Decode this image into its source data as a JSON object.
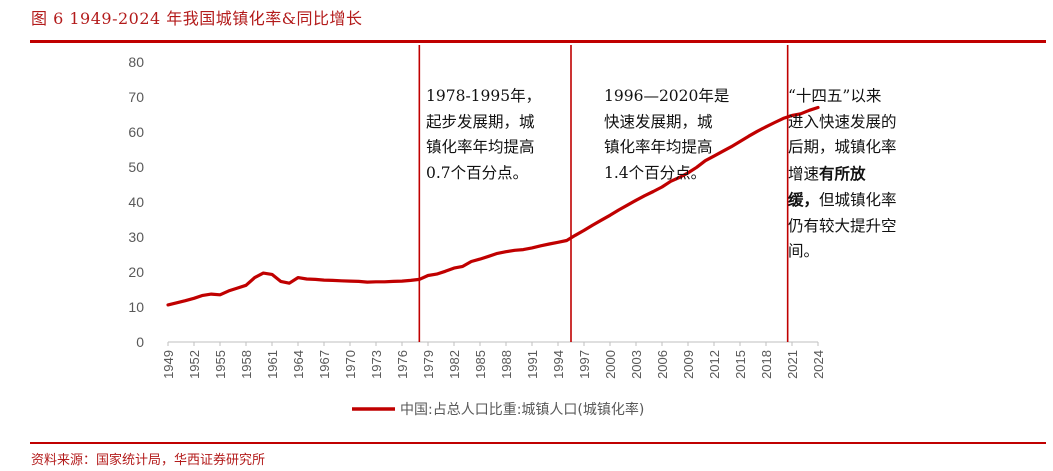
{
  "figure_title": "图 6   1949-2024 年我国城镇化率&同比增长",
  "source_note": "资料来源：国家统计局，华西证券研究所",
  "colors": {
    "accent": "#c00000",
    "line": "#c00000"
  },
  "chart_data": {
    "type": "line",
    "title": "",
    "xlabel": "",
    "ylabel": "",
    "ylim": [
      0,
      80
    ],
    "yticks": [
      0,
      10,
      20,
      30,
      40,
      50,
      60,
      70,
      80
    ],
    "x_tick_labels": [
      "1949",
      "1952",
      "1955",
      "1958",
      "1961",
      "1964",
      "1967",
      "1970",
      "1973",
      "1976",
      "1979",
      "1982",
      "1985",
      "1988",
      "1991",
      "1994",
      "1997",
      "2000",
      "2003",
      "2006",
      "2009",
      "2012",
      "2015",
      "2018",
      "2021",
      "2024"
    ],
    "grid": false,
    "legend_position": "bottom",
    "series": [
      {
        "name": "中国:占总人口比重:城镇人口(城镇化率)",
        "x": [
          1949,
          1950,
          1951,
          1952,
          1953,
          1954,
          1955,
          1956,
          1957,
          1958,
          1959,
          1960,
          1961,
          1962,
          1963,
          1964,
          1965,
          1966,
          1967,
          1968,
          1969,
          1970,
          1971,
          1972,
          1973,
          1974,
          1975,
          1976,
          1977,
          1978,
          1979,
          1980,
          1981,
          1982,
          1983,
          1984,
          1985,
          1986,
          1987,
          1988,
          1989,
          1990,
          1991,
          1992,
          1993,
          1994,
          1995,
          1996,
          1997,
          1998,
          1999,
          2000,
          2001,
          2002,
          2003,
          2004,
          2005,
          2006,
          2007,
          2008,
          2009,
          2010,
          2011,
          2012,
          2013,
          2014,
          2015,
          2016,
          2017,
          2018,
          2019,
          2020,
          2021,
          2022,
          2023,
          2024
        ],
        "values": [
          10.6,
          11.2,
          11.8,
          12.5,
          13.3,
          13.7,
          13.5,
          14.6,
          15.4,
          16.2,
          18.4,
          19.7,
          19.3,
          17.3,
          16.8,
          18.4,
          18.0,
          17.9,
          17.7,
          17.6,
          17.5,
          17.4,
          17.3,
          17.1,
          17.2,
          17.2,
          17.3,
          17.4,
          17.6,
          17.9,
          19.0,
          19.4,
          20.2,
          21.1,
          21.6,
          23.0,
          23.7,
          24.5,
          25.3,
          25.8,
          26.2,
          26.4,
          26.9,
          27.5,
          28.0,
          28.5,
          29.0,
          30.5,
          31.9,
          33.4,
          34.8,
          36.2,
          37.7,
          39.1,
          40.5,
          41.8,
          43.0,
          44.3,
          45.9,
          47.0,
          48.3,
          49.9,
          51.8,
          53.1,
          54.5,
          55.8,
          57.3,
          58.8,
          60.2,
          61.5,
          62.7,
          63.9,
          64.7,
          65.2,
          66.2,
          67.0
        ]
      }
    ],
    "vlines": [
      {
        "x": 1978
      },
      {
        "x": 1995.5
      },
      {
        "x": 2020.5
      }
    ]
  },
  "annotations": {
    "period1": "1978-1995年，\n起步发展期，城\n镇化率年均提高\n0.7个百分点。",
    "period2": "1996—2020年是\n快速发展期，城\n镇化率年均提高\n1.4个百分点。",
    "period3_pre": "“十四五”以来\n进入快速发展的\n后期，城镇化率\n增速",
    "period3_bold1": "有所放",
    "period3_bold2": "缓，",
    "period3_post": "但城镇化率\n仍有较大提升空\n间。"
  }
}
